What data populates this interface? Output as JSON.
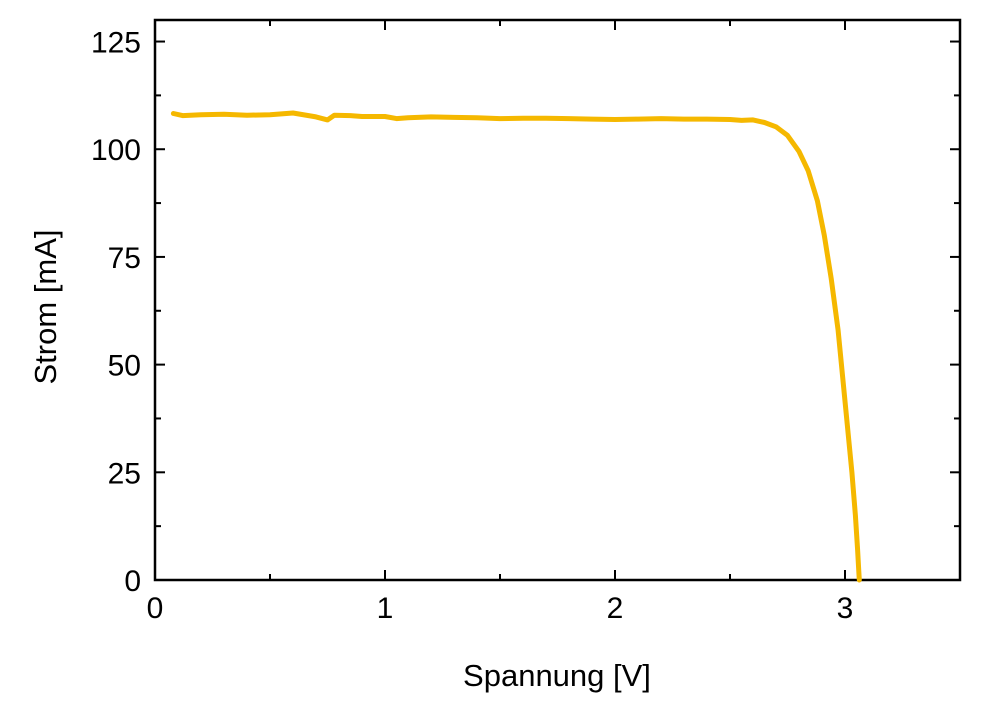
{
  "chart_data": {
    "type": "line",
    "title": "",
    "xlabel": "Spannung [V]",
    "ylabel": "Strom [mA]",
    "xlim": [
      0,
      3.5
    ],
    "ylim": [
      0,
      130
    ],
    "xticks": [
      0,
      1,
      2,
      3
    ],
    "yticks": [
      0,
      25,
      50,
      75,
      100,
      125
    ],
    "grid": false,
    "legend": "none",
    "series": [
      {
        "color": "#F5B800",
        "x": [
          0.08,
          0.12,
          0.2,
          0.3,
          0.4,
          0.5,
          0.6,
          0.7,
          0.75,
          0.78,
          0.85,
          0.9,
          1.0,
          1.05,
          1.1,
          1.2,
          1.3,
          1.4,
          1.5,
          1.6,
          1.7,
          1.8,
          1.9,
          2.0,
          2.1,
          2.2,
          2.3,
          2.4,
          2.5,
          2.55,
          2.6,
          2.65,
          2.7,
          2.75,
          2.8,
          2.84,
          2.88,
          2.91,
          2.94,
          2.97,
          2.99,
          3.01,
          3.03,
          3.045,
          3.055,
          3.06,
          3.062
        ],
        "y": [
          108.3,
          107.8,
          108.0,
          108.1,
          107.9,
          108.0,
          108.4,
          107.5,
          106.8,
          107.9,
          107.8,
          107.6,
          107.6,
          107.1,
          107.3,
          107.5,
          107.4,
          107.3,
          107.1,
          107.2,
          107.2,
          107.1,
          107.0,
          106.9,
          107.0,
          107.1,
          107.0,
          107.0,
          106.9,
          106.7,
          106.8,
          106.2,
          105.2,
          103.2,
          99.5,
          95.0,
          88.0,
          80.0,
          70.0,
          58.0,
          47.0,
          36.0,
          25.0,
          15.0,
          7.0,
          2.0,
          0.0
        ]
      }
    ]
  }
}
